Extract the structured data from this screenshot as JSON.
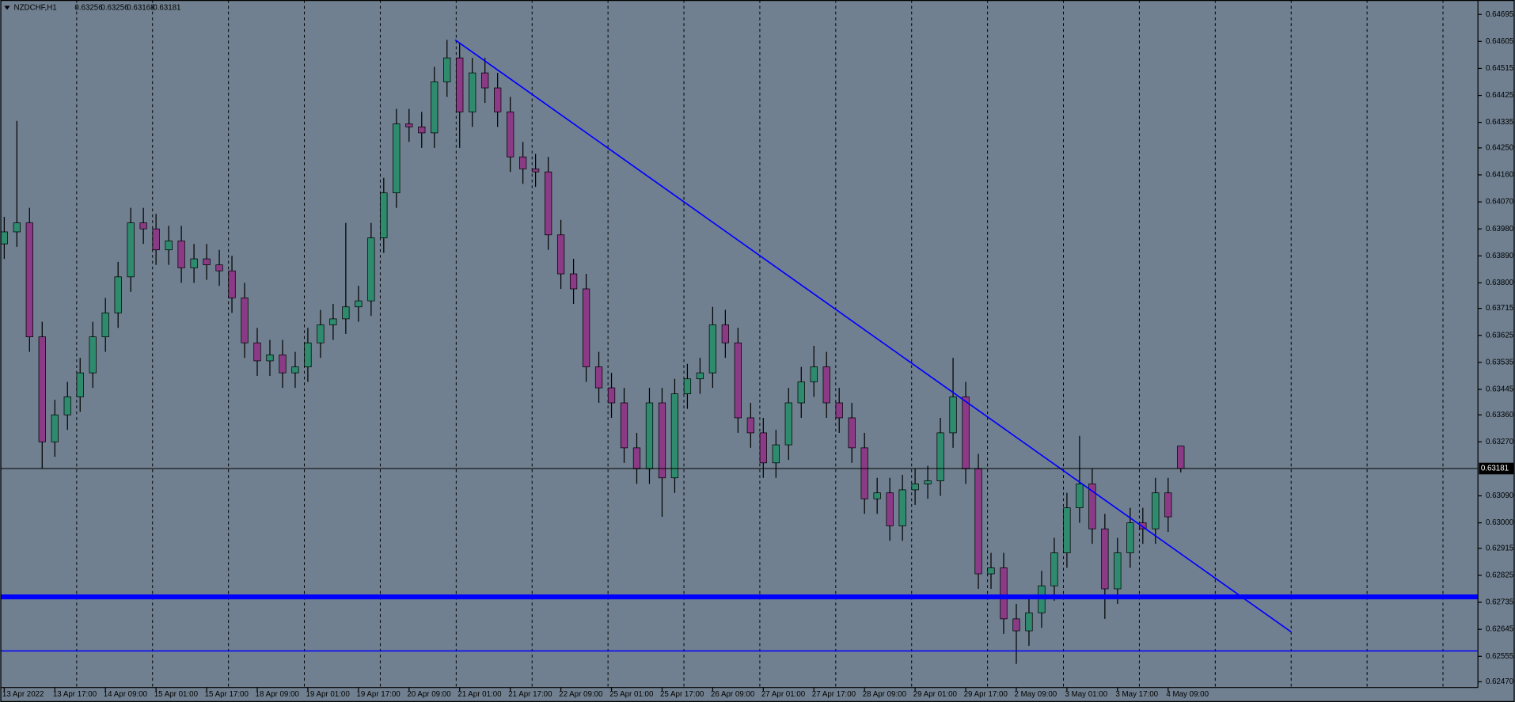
{
  "chart_data": {
    "type": "candlestick",
    "symbol": "NZDCHF,H1",
    "categories": [
      "13 Apr 2022",
      null,
      null,
      null,
      "13 Apr 17:00",
      null,
      null,
      null,
      "14 Apr 09:00",
      null,
      null,
      null,
      "15 Apr 01:00",
      null,
      null,
      null,
      "15 Apr 17:00",
      null,
      null,
      null,
      "18 Apr 09:00",
      null,
      null,
      null,
      "19 Apr 01:00",
      null,
      null,
      null,
      "19 Apr 17:00",
      null,
      null,
      null,
      "20 Apr 09:00",
      null,
      null,
      null,
      "21 Apr 01:00",
      null,
      null,
      null,
      "21 Apr 17:00",
      null,
      null,
      null,
      "22 Apr 09:00",
      null,
      null,
      null,
      "25 Apr 01:00",
      null,
      null,
      null,
      "25 Apr 17:00",
      null,
      null,
      null,
      "26 Apr 09:00",
      null,
      null,
      null,
      "27 Apr 01:00",
      null,
      null,
      null,
      "27 Apr 17:00",
      null,
      null,
      null,
      "28 Apr 09:00",
      null,
      null,
      null,
      "29 Apr 01:00",
      null,
      null,
      null,
      "29 Apr 17:00",
      null,
      null,
      null,
      "2 May 09:00",
      null,
      null,
      null,
      "3 May 01:00",
      null,
      null,
      null,
      "3 May 17:00",
      null,
      null,
      null,
      "4 May 09:00",
      null
    ],
    "open": [
      0.6393,
      0.6397,
      0.64,
      0.6362,
      0.6327,
      0.6336,
      0.6342,
      0.635,
      0.6362,
      0.637,
      0.6382,
      0.64,
      0.6398,
      0.6391,
      0.6394,
      0.6385,
      0.6388,
      0.6386,
      0.6384,
      0.6375,
      0.636,
      0.6354,
      0.6356,
      0.635,
      0.6352,
      0.636,
      0.6366,
      0.6368,
      0.6372,
      0.6374,
      0.6395,
      0.641,
      0.6433,
      0.6432,
      0.643,
      0.6447,
      0.6455,
      0.6437,
      0.645,
      0.6445,
      0.6437,
      0.6422,
      0.6418,
      0.6417,
      0.6396,
      0.6383,
      0.6378,
      0.6352,
      0.6345,
      0.634,
      0.6325,
      0.6318,
      0.634,
      0.6315,
      0.6343,
      0.6348,
      0.635,
      0.6366,
      0.636,
      0.6335,
      0.633,
      0.632,
      0.6326,
      0.634,
      0.6347,
      0.6352,
      0.634,
      0.6335,
      0.6325,
      0.6308,
      0.631,
      0.6299,
      0.6311,
      0.6313,
      0.6314,
      0.633,
      0.6342,
      0.6318,
      0.6283,
      0.6285,
      0.6268,
      0.6264,
      0.627,
      0.6279,
      0.629,
      0.6305,
      0.6313,
      0.6298,
      0.6278,
      0.629,
      0.63,
      0.6298,
      0.631,
      0.63256
    ],
    "high": [
      0.6402,
      0.6434,
      0.6405,
      0.6367,
      0.6341,
      0.6347,
      0.6355,
      0.6367,
      0.6375,
      0.6387,
      0.6405,
      0.6405,
      0.6403,
      0.6399,
      0.6399,
      0.6393,
      0.6393,
      0.6391,
      0.6389,
      0.638,
      0.6365,
      0.6361,
      0.6361,
      0.6357,
      0.6365,
      0.6371,
      0.6373,
      0.64,
      0.6379,
      0.64,
      0.6415,
      0.6438,
      0.6438,
      0.6437,
      0.6452,
      0.6461,
      0.646,
      0.6455,
      0.6455,
      0.645,
      0.6442,
      0.6427,
      0.6423,
      0.6422,
      0.6401,
      0.6388,
      0.6383,
      0.6357,
      0.635,
      0.6345,
      0.633,
      0.6345,
      0.6345,
      0.6348,
      0.6353,
      0.6355,
      0.6372,
      0.6371,
      0.6365,
      0.634,
      0.6335,
      0.6331,
      0.6345,
      0.6352,
      0.6359,
      0.6357,
      0.6345,
      0.634,
      0.633,
      0.6315,
      0.6315,
      0.6316,
      0.6318,
      0.6319,
      0.6335,
      0.6355,
      0.6347,
      0.6323,
      0.629,
      0.629,
      0.6273,
      0.6275,
      0.6284,
      0.6295,
      0.631,
      0.6329,
      0.6318,
      0.6303,
      0.6295,
      0.6305,
      0.6305,
      0.6315,
      0.6315,
      0.63256
    ],
    "low": [
      0.6388,
      0.6392,
      0.6357,
      0.6318,
      0.6322,
      0.6331,
      0.6337,
      0.6345,
      0.6357,
      0.6365,
      0.6377,
      0.6393,
      0.6386,
      0.6386,
      0.638,
      0.638,
      0.6381,
      0.6379,
      0.637,
      0.6355,
      0.6349,
      0.6349,
      0.6345,
      0.6345,
      0.6347,
      0.6355,
      0.6361,
      0.6363,
      0.6367,
      0.6369,
      0.639,
      0.6405,
      0.6427,
      0.6425,
      0.6425,
      0.6442,
      0.6425,
      0.6432,
      0.644,
      0.6432,
      0.6417,
      0.6413,
      0.6412,
      0.6391,
      0.6378,
      0.6373,
      0.6347,
      0.634,
      0.6335,
      0.632,
      0.6313,
      0.6313,
      0.6302,
      0.631,
      0.6338,
      0.6343,
      0.6345,
      0.6355,
      0.633,
      0.6325,
      0.6315,
      0.6315,
      0.6321,
      0.6335,
      0.6342,
      0.6335,
      0.633,
      0.632,
      0.6303,
      0.6303,
      0.6294,
      0.6294,
      0.6306,
      0.6308,
      0.6309,
      0.6325,
      0.6313,
      0.6278,
      0.6278,
      0.6263,
      0.6253,
      0.6259,
      0.6265,
      0.6274,
      0.6285,
      0.63,
      0.6293,
      0.6268,
      0.6273,
      0.6285,
      0.6293,
      0.6293,
      0.6297,
      0.63168
    ],
    "close": [
      0.6397,
      0.64,
      0.6362,
      0.6327,
      0.6336,
      0.6342,
      0.635,
      0.6362,
      0.637,
      0.6382,
      0.64,
      0.6398,
      0.6391,
      0.6394,
      0.6385,
      0.6388,
      0.6386,
      0.6384,
      0.6375,
      0.636,
      0.6354,
      0.6356,
      0.635,
      0.6352,
      0.636,
      0.6366,
      0.6368,
      0.6372,
      0.6374,
      0.6395,
      0.641,
      0.6433,
      0.6432,
      0.643,
      0.6447,
      0.6455,
      0.6437,
      0.645,
      0.6445,
      0.6437,
      0.6422,
      0.6418,
      0.6417,
      0.6396,
      0.6383,
      0.6378,
      0.6352,
      0.6345,
      0.634,
      0.6325,
      0.6318,
      0.634,
      0.6315,
      0.6343,
      0.6348,
      0.635,
      0.6366,
      0.636,
      0.6335,
      0.633,
      0.632,
      0.6326,
      0.634,
      0.6347,
      0.6352,
      0.634,
      0.6335,
      0.6325,
      0.6308,
      0.631,
      0.6299,
      0.6311,
      0.6313,
      0.6314,
      0.633,
      0.6342,
      0.6318,
      0.6283,
      0.6285,
      0.6268,
      0.6264,
      0.627,
      0.6279,
      0.629,
      0.6305,
      0.6313,
      0.6298,
      0.6278,
      0.629,
      0.63,
      0.6298,
      0.631,
      0.6302,
      0.63181
    ],
    "up_color": "#2e8b6e",
    "down_color": "#8b3a86",
    "ylim": [
      0.62451,
      0.64743
    ],
    "yticks": [
      0.64695,
      0.64605,
      0.64515,
      0.64425,
      0.64335,
      {
        "value": 0.6425,
        "label": "0.64250"
      },
      {
        "value": 0.6416,
        "label": "0.64160"
      },
      {
        "value": 0.6407,
        "label": "0.64070"
      },
      {
        "value": 0.6398,
        "label": "0.63980"
      },
      {
        "value": 0.6389,
        "label": "0.63890"
      },
      {
        "value": 0.638,
        "label": "0.63800"
      },
      0.63715,
      0.63625,
      0.63535,
      0.63445,
      {
        "value": 0.6336,
        "label": "0.63360"
      },
      {
        "value": 0.6327,
        "label": "0.63270"
      },
      {
        "value": 0.6309,
        "label": "0.63090"
      },
      {
        "value": 0.63,
        "label": "0.63000"
      },
      0.62915,
      0.62825,
      0.62735,
      0.62645,
      0.62555,
      {
        "value": 0.6247,
        "label": "0.62470"
      }
    ],
    "grid": true,
    "trendline": {
      "x": [
        35.65,
        101.7
      ],
      "y": [
        0.6461,
        0.62637
      ],
      "color": "#0000ff"
    },
    "levels": [
      {
        "value": 0.62753,
        "thick": true
      },
      {
        "value": 0.62573,
        "thick": false
      }
    ],
    "level_color": "#0000ff"
  }
}
